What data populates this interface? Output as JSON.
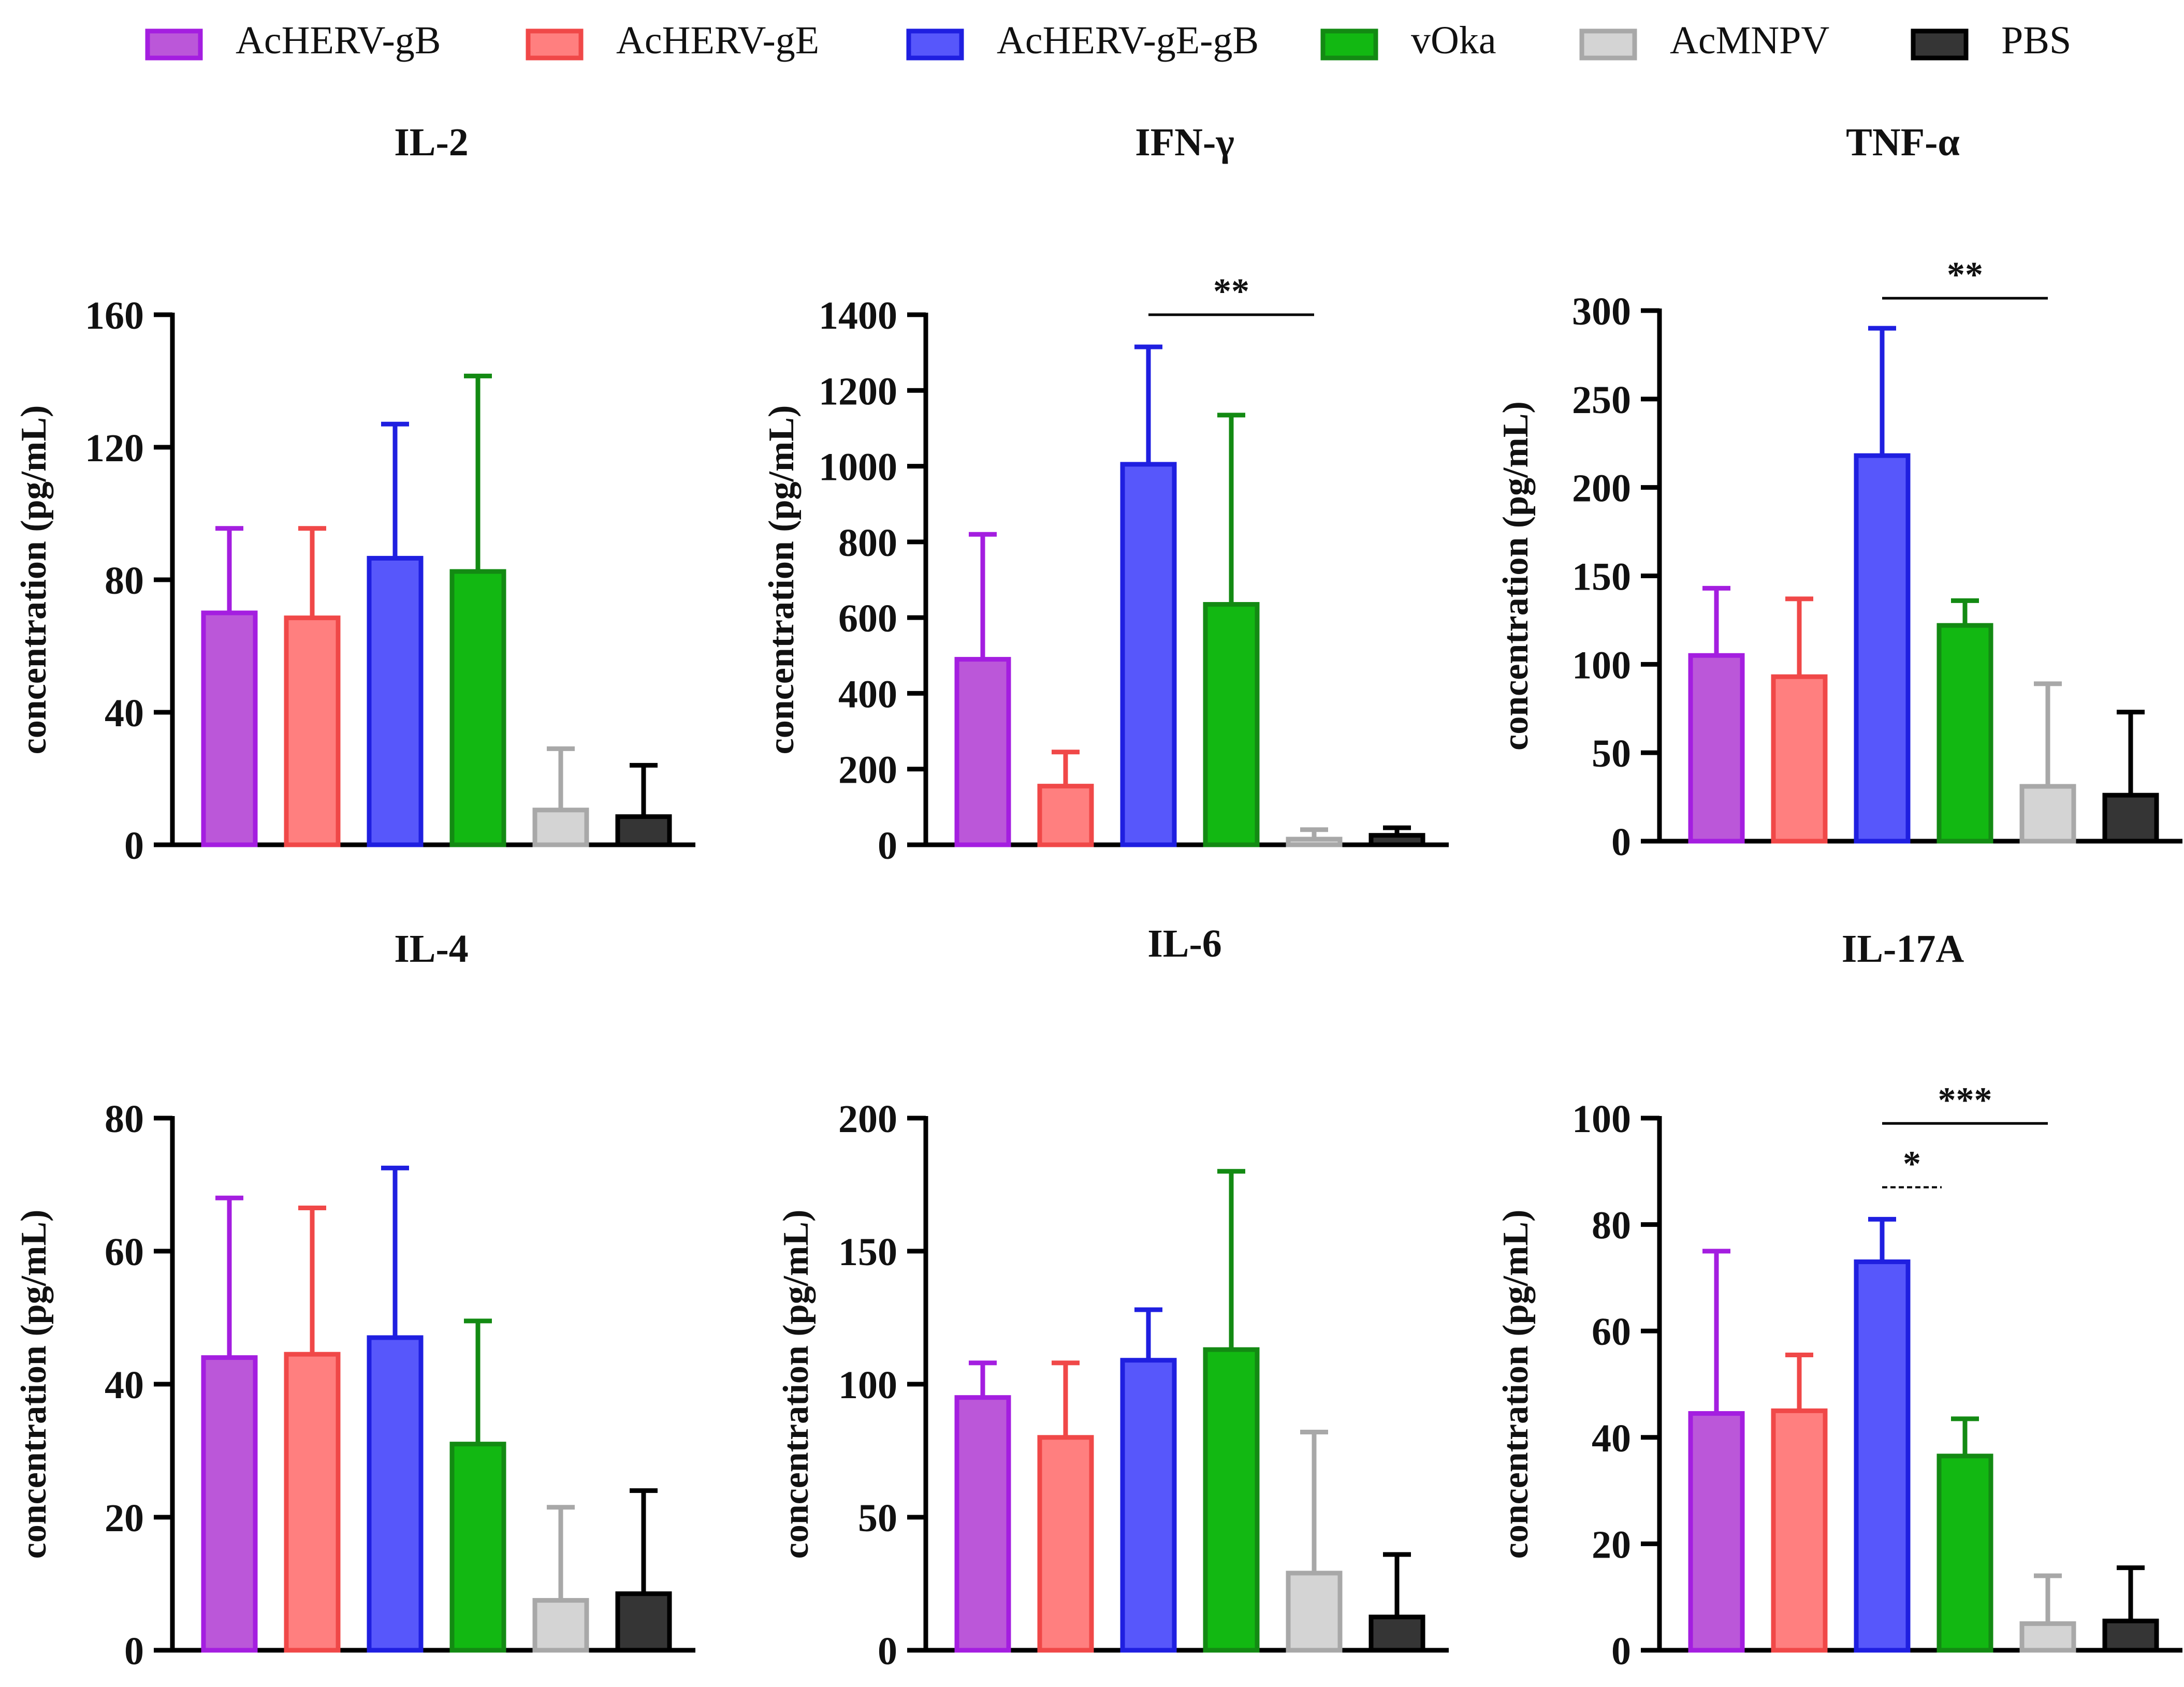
{
  "legend": [
    {
      "label": "AcHERV-gB",
      "fill": "#bb57d9",
      "stroke": "#a41ee0"
    },
    {
      "label": "AcHERV-gE",
      "fill": "#ff7f7f",
      "stroke": "#f04848"
    },
    {
      "label": "AcHERV-gE-gB",
      "fill": "#5757fb",
      "stroke": "#1f1fe0"
    },
    {
      "label": "vOka",
      "fill": "#12b812",
      "stroke": "#138a13"
    },
    {
      "label": "AcMNPV",
      "fill": "#d4d4d4",
      "stroke": "#a8a8a8"
    },
    {
      "label": "PBS",
      "fill": "#353535",
      "stroke": "#000000"
    }
  ],
  "chart_data": [
    {
      "type": "bar",
      "title": "IL-2",
      "ylabel": "concentration (pg/mL)",
      "ylim": [
        0,
        160
      ],
      "ticks": [
        0,
        40,
        80,
        120,
        160
      ],
      "categories": [
        "AcHERV-gB",
        "AcHERV-gE",
        "AcHERV-gE-gB",
        "vOka",
        "AcMNPV",
        "PBS"
      ],
      "values": [
        70,
        68.5,
        86.5,
        82.5,
        10.5,
        8.5
      ],
      "errors": [
        95.5,
        95.5,
        127,
        141.5,
        29,
        24
      ],
      "annotations": []
    },
    {
      "type": "bar",
      "title": "IFN-γ",
      "ylabel": "concentration (pg/mL)",
      "ylim": [
        0,
        1400
      ],
      "ticks": [
        0,
        200,
        400,
        600,
        800,
        1000,
        1200,
        1400
      ],
      "categories": [
        "AcHERV-gB",
        "AcHERV-gE",
        "AcHERV-gE-gB",
        "vOka",
        "AcMNPV",
        "PBS"
      ],
      "values": [
        490,
        155,
        1005,
        635,
        15,
        25
      ],
      "errors": [
        820,
        245,
        1315,
        1135,
        40,
        45
      ],
      "annotations": [
        {
          "from": 2,
          "to": 4,
          "y": 1400,
          "label": "**",
          "dashed": false
        }
      ]
    },
    {
      "type": "bar",
      "title": "TNF-α",
      "ylabel": "concentration (pg/mL)",
      "ylim": [
        0,
        300
      ],
      "ticks": [
        0,
        50,
        100,
        150,
        200,
        250,
        300
      ],
      "categories": [
        "AcHERV-gB",
        "AcHERV-gE",
        "AcHERV-gE-gB",
        "vOka",
        "AcMNPV",
        "PBS"
      ],
      "values": [
        105,
        93,
        218,
        122,
        31,
        26
      ],
      "errors": [
        143,
        137,
        290,
        136,
        89,
        73
      ],
      "annotations": [
        {
          "from": 2,
          "to": 4,
          "y": 307,
          "label": "**",
          "dashed": false
        }
      ]
    },
    {
      "type": "bar",
      "title": "IL-4",
      "ylabel": "concentration (pg/mL)",
      "ylim": [
        0,
        80
      ],
      "ticks": [
        0,
        20,
        40,
        60,
        80
      ],
      "categories": [
        "AcHERV-gB",
        "AcHERV-gE",
        "AcHERV-gE-gB",
        "vOka",
        "AcMNPV",
        "PBS"
      ],
      "values": [
        44,
        44.5,
        47,
        31,
        7.5,
        8.5
      ],
      "errors": [
        68,
        66.5,
        72.5,
        49.5,
        21.5,
        24
      ],
      "annotations": []
    },
    {
      "type": "bar",
      "title": "IL-6",
      "ylabel": "concentration (pg/mL)",
      "ylim": [
        0,
        200
      ],
      "ticks": [
        0,
        50,
        100,
        150,
        200
      ],
      "categories": [
        "AcHERV-gB",
        "AcHERV-gE",
        "AcHERV-gE-gB",
        "vOka",
        "AcMNPV",
        "PBS"
      ],
      "values": [
        95,
        80,
        109,
        113,
        29,
        12.5
      ],
      "errors": [
        108,
        108,
        128,
        180,
        82,
        36
      ],
      "annotations": []
    },
    {
      "type": "bar",
      "title": "IL-17A",
      "ylabel": "concentration (pg/mL)",
      "ylim": [
        0,
        100
      ],
      "ticks": [
        0,
        20,
        40,
        60,
        80,
        100
      ],
      "categories": [
        "AcHERV-gB",
        "AcHERV-gE",
        "AcHERV-gE-gB",
        "vOka",
        "AcMNPV",
        "PBS"
      ],
      "values": [
        44.5,
        45,
        73,
        36.5,
        5,
        5.5
      ],
      "errors": [
        75,
        55.5,
        81,
        43.5,
        14,
        15.5
      ],
      "annotations": [
        {
          "from": 2,
          "to": 4,
          "y": 99,
          "label": "***",
          "dashed": false
        },
        {
          "from": 2,
          "to": 3,
          "y": 87,
          "label": "*",
          "dashed": true
        }
      ]
    }
  ]
}
